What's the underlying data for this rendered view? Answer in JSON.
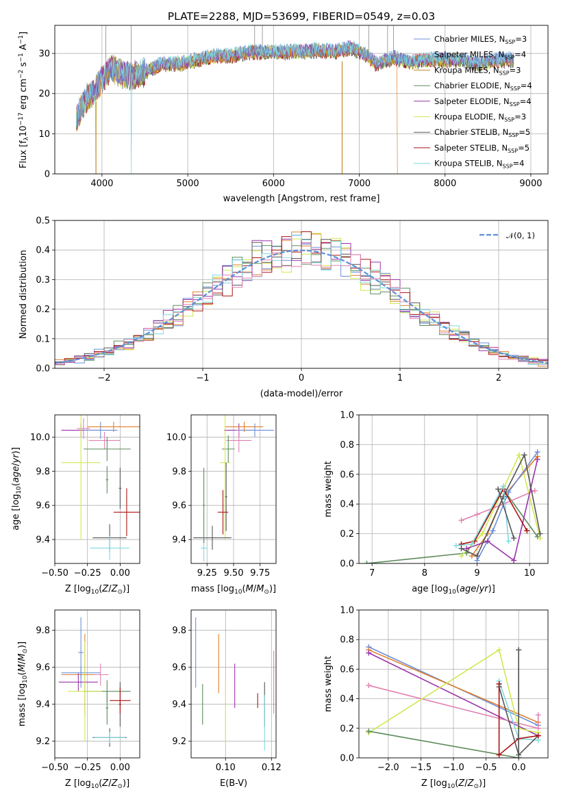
{
  "colors": {
    "Chabrier MILES": "#6a8fd8",
    "Salpeter MILES": "#e07f2a",
    "Kroupa MILES": "#c08a2a",
    "Chabrier ELODIE": "#5a8a5a",
    "Salpeter ELODIE": "#9933aa",
    "Kroupa ELODIE": "#d0e850",
    "Chabrier STELIB": "#555555",
    "Salpeter STELIB": "#aa1111",
    "Kroupa STELIB": "#7fd8e0",
    "Normal": "#5b8fd8",
    "Pink": "#e080b0"
  },
  "chart_data": [
    {
      "id": "spectrum",
      "type": "line",
      "title": "PLATE=2288, MJD=53699, FIBERID=0549, z=0.03",
      "xlabel": "wavelength [Angstrom, rest frame]",
      "ylabel": "Flux [f_λ10^-17 erg cm^-2 s^-1 A^-1]",
      "xlim": [
        3450,
        9200
      ],
      "ylim": [
        0,
        37
      ],
      "xticks": [
        4000,
        5000,
        6000,
        7000,
        8000,
        9000
      ],
      "yticks": [
        0,
        10,
        20,
        30
      ],
      "legend_position": "top-right",
      "legend": [
        {
          "label": "Chabrier MILES, N",
          "sub": "SSP",
          "suffix": "=3",
          "color": "Chabrier MILES"
        },
        {
          "label": "Salpeter MILES, N",
          "sub": "SSP",
          "suffix": "=4",
          "color": "Pink"
        },
        {
          "label": "Kroupa MILES, N",
          "sub": "SSP",
          "suffix": "=3",
          "color": "Kroupa MILES"
        },
        {
          "label": "Chabrier ELODIE, N",
          "sub": "SSP",
          "suffix": "=4",
          "color": "Chabrier ELODIE"
        },
        {
          "label": "Salpeter ELODIE, N",
          "sub": "SSP",
          "suffix": "=4",
          "color": "Salpeter ELODIE"
        },
        {
          "label": "Kroupa ELODIE, N",
          "sub": "SSP",
          "suffix": "=3",
          "color": "Kroupa ELODIE"
        },
        {
          "label": "Chabrier STELIB, N",
          "sub": "SSP",
          "suffix": "=5",
          "color": "Chabrier STELIB"
        },
        {
          "label": "Salpeter STELIB, N",
          "sub": "SSP",
          "suffix": "=5",
          "color": "Salpeter STELIB"
        },
        {
          "label": "Kroupa STELIB, N",
          "sub": "SSP",
          "suffix": "=4",
          "color": "Kroupa STELIB"
        }
      ],
      "envelope": [
        [
          3700,
          13
        ],
        [
          3800,
          18
        ],
        [
          3900,
          20
        ],
        [
          4000,
          23
        ],
        [
          4100,
          26
        ],
        [
          4300,
          24
        ],
        [
          4500,
          25
        ],
        [
          4700,
          27
        ],
        [
          4900,
          27
        ],
        [
          5100,
          28
        ],
        [
          5300,
          29
        ],
        [
          5500,
          29
        ],
        [
          5700,
          30
        ],
        [
          5900,
          30
        ],
        [
          6100,
          30
        ],
        [
          6300,
          30
        ],
        [
          6500,
          30.5
        ],
        [
          6700,
          30
        ],
        [
          6900,
          31
        ],
        [
          7100,
          29
        ],
        [
          7200,
          27
        ],
        [
          7400,
          28.5
        ],
        [
          7600,
          27.5
        ],
        [
          7800,
          28
        ],
        [
          8000,
          28
        ],
        [
          8200,
          28
        ],
        [
          8400,
          27
        ],
        [
          8600,
          28
        ],
        [
          8800,
          28
        ]
      ],
      "dips": [
        3933,
        4340,
        6800
      ],
      "drops": [
        3933,
        7440
      ]
    },
    {
      "id": "residuals",
      "type": "line",
      "xlabel": "(data-model)/error",
      "ylabel": "Normed distribution",
      "xlim": [
        -2.5,
        2.5
      ],
      "ylim": [
        0,
        0.5
      ],
      "xticks": [
        -2,
        -1,
        0,
        1,
        2
      ],
      "yticks": [
        0.0,
        0.1,
        0.2,
        0.3,
        0.4,
        0.5
      ],
      "legend_position": "top-right",
      "legend": [
        {
          "label": "𝒩(0, 1)",
          "color": "Normal"
        }
      ],
      "bin_width": 0.1,
      "bins_range": [
        -2.5,
        2.5
      ]
    },
    {
      "id": "age-vs-Z",
      "type": "scatter",
      "xlabel": "Z [log10(Z/Z⊙)]",
      "ylabel": "age [log10(age/yr)]",
      "xlim": [
        -0.5,
        0.15
      ],
      "ylim": [
        9.26,
        10.13
      ],
      "xticks": [
        -0.5,
        -0.25,
        0.0
      ],
      "yticks": [
        9.4,
        9.6,
        9.8,
        10.0
      ],
      "points": [
        {
          "x": -0.3,
          "y": 10.04,
          "xerr": 0.15,
          "yerr": 0.04,
          "color": "Salpeter ELODIE"
        },
        {
          "x": -0.15,
          "y": 10.04,
          "xerr": 0.13,
          "yerr": 0.05,
          "color": "Chabrier MILES"
        },
        {
          "x": -0.05,
          "y": 10.06,
          "xerr": 0.2,
          "yerr": 0.03,
          "color": "Salpeter MILES"
        },
        {
          "x": -0.28,
          "y": 10.05,
          "xerr": 0.05,
          "yerr": 0.06,
          "color": "Pink"
        },
        {
          "x": -0.12,
          "y": 9.98,
          "xerr": 0.12,
          "yerr": 0.05,
          "color": "Pink"
        },
        {
          "x": -0.1,
          "y": 9.93,
          "xerr": 0.18,
          "yerr": 0.07,
          "color": "Chabrier ELODIE"
        },
        {
          "x": -0.3,
          "y": 9.85,
          "xerr": 0.15,
          "yerr": 0.45,
          "color": "Kroupa ELODIE"
        },
        {
          "x": 0.0,
          "y": 9.7,
          "xerr": 0.01,
          "yerr": 0.12,
          "color": "Chabrier STELIB"
        },
        {
          "x": 0.05,
          "y": 9.56,
          "xerr": 0.1,
          "yerr": 0.14,
          "color": "Salpeter STELIB"
        },
        {
          "x": -0.08,
          "y": 9.41,
          "xerr": 0.13,
          "yerr": 0.08,
          "color": "Chabrier STELIB"
        },
        {
          "x": -0.08,
          "y": 9.35,
          "xerr": 0.15,
          "yerr": 0.07,
          "color": "Kroupa STELIB"
        },
        {
          "x": -0.1,
          "y": 9.75,
          "xerr": 0.01,
          "yerr": 0.08,
          "color": "Chabrier ELODIE"
        }
      ]
    },
    {
      "id": "age-vs-mass",
      "type": "scatter",
      "xlabel": "mass [log10(M/M⊙)]",
      "ylabel": "",
      "xlim": [
        9.1,
        9.9
      ],
      "ylim": [
        9.26,
        10.13
      ],
      "xticks": [
        9.25,
        9.5,
        9.75
      ],
      "yticks": [
        9.4,
        9.6,
        9.8,
        10.0
      ],
      "points": [
        {
          "x": 9.55,
          "y": 10.04,
          "xerr": 0.14,
          "yerr": 0.04,
          "color": "Salpeter ELODIE"
        },
        {
          "x": 9.7,
          "y": 10.04,
          "xerr": 0.18,
          "yerr": 0.04,
          "color": "Chabrier MILES"
        },
        {
          "x": 9.6,
          "y": 10.06,
          "xerr": 0.18,
          "yerr": 0.03,
          "color": "Salpeter MILES"
        },
        {
          "x": 9.55,
          "y": 9.98,
          "xerr": 0.12,
          "yerr": 0.07,
          "color": "Pink"
        },
        {
          "x": 9.45,
          "y": 9.93,
          "xerr": 0.06,
          "yerr": 0.08,
          "color": "Chabrier ELODIE"
        },
        {
          "x": 9.42,
          "y": 9.85,
          "xerr": 0.05,
          "yerr": 0.45,
          "color": "Kroupa ELODIE"
        },
        {
          "x": 9.43,
          "y": 9.65,
          "xerr": 0.01,
          "yerr": 0.2,
          "color": "Chabrier STELIB"
        },
        {
          "x": 9.4,
          "y": 9.56,
          "xerr": 0.05,
          "yerr": 0.13,
          "color": "Salpeter STELIB"
        },
        {
          "x": 9.3,
          "y": 9.41,
          "xerr": 0.18,
          "yerr": 0.07,
          "color": "Chabrier STELIB"
        },
        {
          "x": 9.22,
          "y": 9.35,
          "xerr": 0.03,
          "yerr": 0.08,
          "color": "Kroupa STELIB"
        },
        {
          "x": 9.22,
          "y": 9.6,
          "xerr": 0.01,
          "yerr": 0.22,
          "color": "Chabrier ELODIE"
        }
      ]
    },
    {
      "id": "weight-vs-age",
      "type": "line",
      "xlabel": "age [log10(age/yr)]",
      "ylabel": "mass weight",
      "xlim": [
        6.75,
        10.35
      ],
      "ylim": [
        0,
        1.0
      ],
      "xticks": [
        7,
        8,
        9,
        10
      ],
      "yticks": [
        0.0,
        0.2,
        0.4,
        0.6,
        0.8,
        1.0
      ],
      "series": [
        {
          "color": "Chabrier ELODIE",
          "x": [
            6.9,
            8.8,
            9.5,
            10.15
          ],
          "y": [
            0.0,
            0.07,
            0.5,
            0.18
          ]
        },
        {
          "color": "Kroupa ELODIE",
          "x": [
            8.7,
            9.1,
            9.8,
            10.2
          ],
          "y": [
            0.05,
            0.2,
            0.73,
            0.17
          ]
        },
        {
          "color": "Salpeter MILES",
          "x": [
            8.9,
            9.2,
            9.5,
            10.15
          ],
          "y": [
            0.05,
            0.2,
            0.45,
            0.72
          ]
        },
        {
          "color": "Chabrier MILES",
          "x": [
            9.0,
            9.3,
            9.6,
            10.15
          ],
          "y": [
            0.02,
            0.22,
            0.48,
            0.75
          ]
        },
        {
          "color": "Pink",
          "x": [
            8.7,
            9.0,
            9.5,
            10.1
          ],
          "y": [
            0.29,
            0.33,
            0.4,
            0.49
          ]
        },
        {
          "color": "Salpeter ELODIE",
          "x": [
            8.8,
            9.2,
            9.7,
            10.15
          ],
          "y": [
            0.1,
            0.15,
            0.02,
            0.7
          ]
        },
        {
          "color": "Chabrier STELIB",
          "x": [
            8.7,
            9.0,
            9.5,
            9.9,
            10.2
          ],
          "y": [
            0.1,
            0.05,
            0.45,
            0.73,
            0.2
          ]
        },
        {
          "color": "Salpeter STELIB",
          "x": [
            8.7,
            8.95,
            9.5,
            9.95
          ],
          "y": [
            0.13,
            0.15,
            0.5,
            0.22
          ]
        },
        {
          "color": "Kroupa STELIB",
          "x": [
            8.6,
            8.9,
            9.5,
            9.6
          ],
          "y": [
            0.12,
            0.13,
            0.52,
            0.15
          ]
        },
        {
          "color": "Chabrier STELIB",
          "x": [
            9.4,
            9.7
          ],
          "y": [
            0.5,
            0.17
          ]
        }
      ]
    },
    {
      "id": "mass-vs-Z",
      "type": "scatter",
      "xlabel": "Z [log10(Z/Z⊙)]",
      "ylabel": "mass [log10(M/M⊙)]",
      "xlim": [
        -0.5,
        0.15
      ],
      "ylim": [
        9.11,
        9.91
      ],
      "xticks": [
        -0.5,
        -0.25,
        0.0
      ],
      "yticks": [
        9.2,
        9.4,
        9.6,
        9.8
      ],
      "points": [
        {
          "x": -0.3,
          "y": 9.68,
          "xerr": 0.02,
          "yerr": 0.19,
          "color": "Chabrier MILES"
        },
        {
          "x": -0.27,
          "y": 9.56,
          "xerr": 0.18,
          "yerr": 0.22,
          "color": "Salpeter MILES"
        },
        {
          "x": -0.32,
          "y": 9.52,
          "xerr": 0.15,
          "yerr": 0.05,
          "color": "Salpeter ELODIE"
        },
        {
          "x": -0.3,
          "y": 9.57,
          "xerr": 0.15,
          "yerr": 0.03,
          "color": "Chabrier MILES"
        },
        {
          "x": -0.15,
          "y": 9.56,
          "xerr": 0.05,
          "yerr": 0.06,
          "color": "Pink"
        },
        {
          "x": -0.1,
          "y": 9.47,
          "xerr": 0.18,
          "yerr": 0.06,
          "color": "Chabrier ELODIE"
        },
        {
          "x": -0.27,
          "y": 9.47,
          "xerr": 0.13,
          "yerr": 0.27,
          "color": "Kroupa ELODIE"
        },
        {
          "x": 0.0,
          "y": 9.4,
          "xerr": 0.01,
          "yerr": 0.12,
          "color": "Chabrier STELIB"
        },
        {
          "x": 0.0,
          "y": 9.42,
          "xerr": 0.08,
          "yerr": 0.07,
          "color": "Salpeter STELIB"
        },
        {
          "x": -0.08,
          "y": 9.22,
          "xerr": 0.13,
          "yerr": 0.05,
          "color": "Chabrier STELIB"
        },
        {
          "x": -0.08,
          "y": 9.22,
          "xerr": 0.12,
          "yerr": 0.03,
          "color": "Kroupa STELIB"
        },
        {
          "x": -0.1,
          "y": 9.38,
          "xerr": 0.01,
          "yerr": 0.09,
          "color": "Chabrier ELODIE"
        }
      ]
    },
    {
      "id": "mass-vs-EBV",
      "type": "scatter",
      "xlabel": "E(B-V)",
      "ylabel": "",
      "xlim": [
        0.085,
        0.122
      ],
      "ylim": [
        9.11,
        9.91
      ],
      "xticks": [
        0.1,
        0.12
      ],
      "yticks": [
        9.2,
        9.4,
        9.6,
        9.8
      ],
      "points": [
        {
          "x": 0.087,
          "y": 9.68,
          "yerr": 0.19,
          "color": "Chabrier MILES"
        },
        {
          "x": 0.09,
          "y": 9.4,
          "yerr": 0.11,
          "color": "Chabrier ELODIE"
        },
        {
          "x": 0.097,
          "y": 9.62,
          "yerr": 0.16,
          "color": "Salpeter MILES"
        },
        {
          "x": 0.1,
          "y": 9.36,
          "yerr": 0.17,
          "color": "Kroupa ELODIE"
        },
        {
          "x": 0.104,
          "y": 9.5,
          "yerr": 0.12,
          "color": "Salpeter ELODIE"
        },
        {
          "x": 0.114,
          "y": 9.42,
          "yerr": 0.04,
          "color": "Salpeter STELIB"
        },
        {
          "x": 0.117,
          "y": 9.4,
          "yerr": 0.12,
          "color": "Chabrier STELIB"
        },
        {
          "x": 0.117,
          "y": 9.3,
          "yerr": 0.15,
          "color": "Kroupa STELIB"
        },
        {
          "x": 0.121,
          "y": 9.52,
          "yerr": 0.17,
          "color": "Pink"
        }
      ]
    },
    {
      "id": "weight-vs-Z",
      "type": "line",
      "xlabel": "Z [log10(Z/Z⊙)]",
      "ylabel": "mass weight",
      "xlim": [
        -2.45,
        0.45
      ],
      "ylim": [
        0,
        1.0
      ],
      "xticks": [
        -2.0,
        -1.5,
        -1.0,
        -0.5,
        0.0
      ],
      "yticks": [
        0.0,
        0.2,
        0.4,
        0.6,
        0.8,
        1.0
      ],
      "series": [
        {
          "color": "Chabrier MILES",
          "x": [
            -2.3,
            0.3
          ],
          "y": [
            0.75,
            0.22
          ]
        },
        {
          "color": "Salpeter MILES",
          "x": [
            -2.3,
            0.3
          ],
          "y": [
            0.73,
            0.24
          ]
        },
        {
          "color": "Salpeter ELODIE",
          "x": [
            -2.3,
            0.3
          ],
          "y": [
            0.71,
            0.15
          ]
        },
        {
          "color": "Pink",
          "x": [
            -2.3,
            0.3,
            0.3
          ],
          "y": [
            0.49,
            0.2,
            0.29
          ]
        },
        {
          "color": "Kroupa ELODIE",
          "x": [
            -2.3,
            -0.3,
            0.0,
            0.3
          ],
          "y": [
            0.17,
            0.73,
            0.2,
            0.17
          ]
        },
        {
          "color": "Chabrier ELODIE",
          "x": [
            -2.3,
            0.0,
            0.0
          ],
          "y": [
            0.18,
            0.0,
            0.73
          ]
        },
        {
          "color": "Kroupa STELIB",
          "x": [
            -0.3,
            0.0,
            0.3
          ],
          "y": [
            0.52,
            0.13,
            0.12
          ]
        },
        {
          "color": "Chabrier STELIB",
          "x": [
            -0.3,
            0.0,
            0.3
          ],
          "y": [
            0.48,
            0.02,
            0.15
          ]
        },
        {
          "color": "Salpeter STELIB",
          "x": [
            -0.3,
            -0.3,
            0.0,
            0.3
          ],
          "y": [
            0.5,
            0.02,
            0.13,
            0.15
          ]
        },
        {
          "color": "Chabrier STELIB",
          "x": [
            0.0,
            0.0
          ],
          "y": [
            0.73,
            0.0
          ]
        }
      ]
    }
  ]
}
